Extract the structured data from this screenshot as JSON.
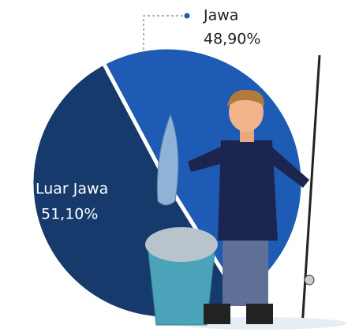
{
  "chart_data": {
    "type": "pie",
    "categories": [
      "Jawa",
      "Luar Jawa"
    ],
    "values": [
      48.9,
      51.1
    ],
    "value_labels": [
      "48,90%",
      "51,10%"
    ],
    "colors": [
      "#1d5bb4",
      "#163a6b"
    ]
  }
}
